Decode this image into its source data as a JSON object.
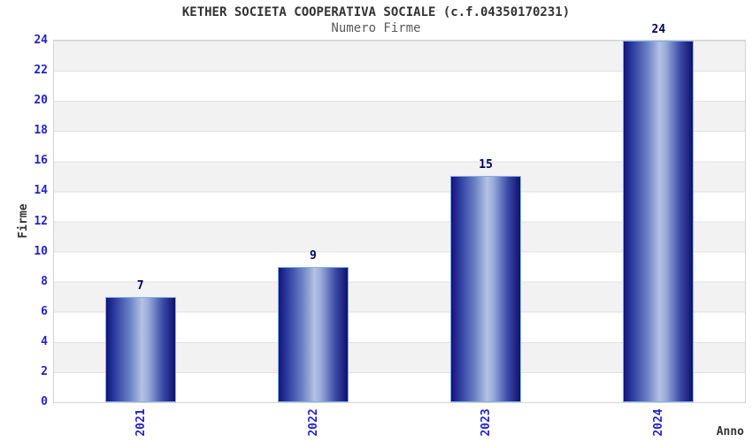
{
  "chart_data": {
    "type": "bar",
    "title": "KETHER SOCIETA COOPERATIVA SOCIALE (c.f.04350170231)",
    "subtitle": "Numero Firme",
    "xlabel": "Anno",
    "ylabel": "Firme",
    "categories": [
      "2021",
      "2022",
      "2023",
      "2024"
    ],
    "values": [
      7,
      9,
      15,
      24
    ],
    "ylim": [
      0,
      24
    ],
    "yticks": [
      0,
      2,
      4,
      6,
      8,
      10,
      12,
      14,
      16,
      18,
      20,
      22,
      24
    ],
    "grid": "horizontal-bands",
    "legend_position": "none",
    "x_tick_rotation_deg": 90
  },
  "colors": {
    "background": "#ffffff",
    "title": "#333333",
    "subtitle": "#595959",
    "axis_title": "#333333",
    "tick_label": "#2323cd",
    "value_label": "#000066",
    "bar_edge": "#7fb2e5",
    "bar_dark": "#13137d",
    "bar_light": "#b4c2e2",
    "band": "#f2f2f2",
    "gridline": "#e2e2e2",
    "plot_border": "#d4d4d4"
  }
}
